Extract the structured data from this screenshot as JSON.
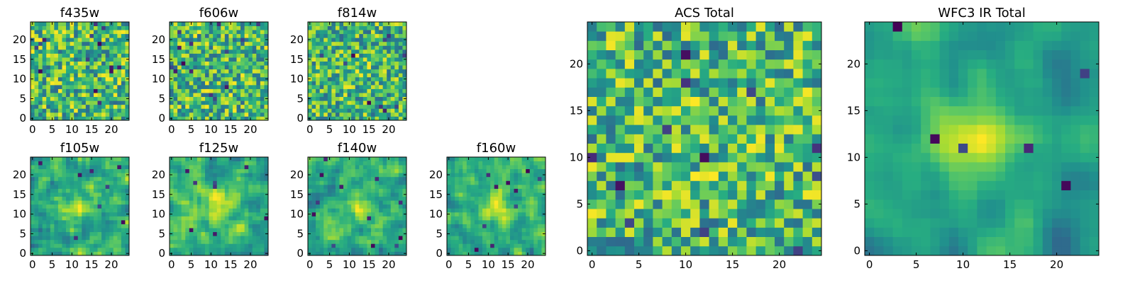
{
  "figure": {
    "colormap": "viridis",
    "colors": {
      "low": "#440154",
      "mid": "#21918c",
      "high": "#fde725",
      "frame": "#000000"
    }
  },
  "chart_data": [
    {
      "type": "heatmap",
      "title": "f435w",
      "grid": [
        25,
        25
      ],
      "xlim": [
        0,
        24
      ],
      "ylim": [
        0,
        24
      ],
      "xticks": [
        "0",
        "5",
        "10",
        "15",
        "20"
      ],
      "yticks": [
        "0",
        "5",
        "10",
        "15",
        "20"
      ],
      "seed": 11,
      "smooth": 0,
      "peak": 0.0,
      "dark_pixels": 14
    },
    {
      "type": "heatmap",
      "title": "f606w",
      "grid": [
        25,
        25
      ],
      "xlim": [
        0,
        24
      ],
      "ylim": [
        0,
        24
      ],
      "xticks": [
        "0",
        "5",
        "10",
        "15",
        "20"
      ],
      "yticks": [
        "0",
        "5",
        "10",
        "15",
        "20"
      ],
      "seed": 23,
      "smooth": 0,
      "peak": 0.0,
      "dark_pixels": 14
    },
    {
      "type": "heatmap",
      "title": "f814w",
      "grid": [
        25,
        25
      ],
      "xlim": [
        0,
        24
      ],
      "ylim": [
        0,
        24
      ],
      "xticks": [
        "0",
        "5",
        "10",
        "15",
        "20"
      ],
      "yticks": [
        "0",
        "5",
        "10",
        "15",
        "20"
      ],
      "seed": 37,
      "smooth": 0,
      "peak": 0.1,
      "dark_pixels": 10
    },
    {
      "type": "heatmap",
      "title": "f105w",
      "grid": [
        25,
        25
      ],
      "xlim": [
        0,
        24
      ],
      "ylim": [
        0,
        24
      ],
      "xticks": [
        "0",
        "5",
        "10",
        "15",
        "20"
      ],
      "yticks": [
        "0",
        "5",
        "10",
        "15",
        "20"
      ],
      "seed": 41,
      "smooth": 1,
      "peak": 0.25,
      "dark_pixels": 8
    },
    {
      "type": "heatmap",
      "title": "f125w",
      "grid": [
        25,
        25
      ],
      "xlim": [
        0,
        24
      ],
      "ylim": [
        0,
        24
      ],
      "xticks": [
        "0",
        "5",
        "10",
        "15",
        "20"
      ],
      "yticks": [
        "0",
        "5",
        "10",
        "15",
        "20"
      ],
      "seed": 53,
      "smooth": 1,
      "peak": 0.3,
      "dark_pixels": 8
    },
    {
      "type": "heatmap",
      "title": "f140w",
      "grid": [
        25,
        25
      ],
      "xlim": [
        0,
        24
      ],
      "ylim": [
        0,
        24
      ],
      "xticks": [
        "0",
        "5",
        "10",
        "15",
        "20"
      ],
      "yticks": [
        "0",
        "5",
        "10",
        "15",
        "20"
      ],
      "seed": 67,
      "smooth": 1,
      "peak": 0.2,
      "dark_pixels": 12
    },
    {
      "type": "heatmap",
      "title": "f160w",
      "grid": [
        25,
        25
      ],
      "xlim": [
        0,
        24
      ],
      "ylim": [
        0,
        24
      ],
      "xticks": [
        "0",
        "5",
        "10",
        "15",
        "20"
      ],
      "yticks": [
        "0",
        "5",
        "10",
        "15",
        "20"
      ],
      "seed": 79,
      "smooth": 1,
      "peak": 0.35,
      "dark_pixels": 10
    },
    {
      "type": "heatmap",
      "title": "ACS Total",
      "grid": [
        25,
        25
      ],
      "xlim": [
        0,
        24
      ],
      "ylim": [
        0,
        24
      ],
      "xticks": [
        "0",
        "5",
        "10",
        "15",
        "20"
      ],
      "yticks": [
        "0",
        "5",
        "10",
        "15",
        "20"
      ],
      "seed": 97,
      "smooth": 0,
      "peak": 0.05,
      "dark_pixels": 12
    },
    {
      "type": "heatmap",
      "title": "WFC3 IR Total",
      "grid": [
        25,
        25
      ],
      "xlim": [
        0,
        24
      ],
      "ylim": [
        0,
        24
      ],
      "xticks": [
        "0",
        "5",
        "10",
        "15",
        "20"
      ],
      "yticks": [
        "0",
        "5",
        "10",
        "15",
        "20"
      ],
      "seed": 131,
      "smooth": 2,
      "peak": 0.45,
      "dark_pixels": 6
    }
  ]
}
